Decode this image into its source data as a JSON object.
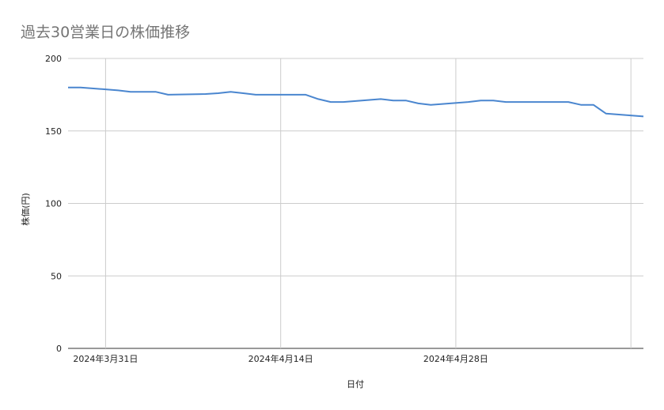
{
  "chart_data": {
    "type": "line",
    "title": "過去30営業日の株価推移",
    "xlabel": "日付",
    "ylabel": "株価(円)",
    "ylim": [
      0,
      200
    ],
    "yticks": [
      0,
      50,
      100,
      150,
      200
    ],
    "xlim": [
      "2024-03-28",
      "2024-05-13"
    ],
    "xticks": [
      {
        "date": "2024-03-31",
        "label": "2024年3月31日"
      },
      {
        "date": "2024-04-14",
        "label": "2024年4月14日"
      },
      {
        "date": "2024-04-28",
        "label": "2024年4月28日"
      },
      {
        "date": "2024-05-12",
        "label": ""
      }
    ],
    "grid": true,
    "legend": "none",
    "series": [
      {
        "color": "#4a86cf",
        "points": [
          {
            "x": "2024-03-28",
            "y": 180
          },
          {
            "x": "2024-03-29",
            "y": 180
          },
          {
            "x": "2024-04-01",
            "y": 178
          },
          {
            "x": "2024-04-02",
            "y": 177
          },
          {
            "x": "2024-04-03",
            "y": 177
          },
          {
            "x": "2024-04-04",
            "y": 177
          },
          {
            "x": "2024-04-05",
            "y": 175
          },
          {
            "x": "2024-04-08",
            "y": 175.5
          },
          {
            "x": "2024-04-09",
            "y": 176
          },
          {
            "x": "2024-04-10",
            "y": 177
          },
          {
            "x": "2024-04-11",
            "y": 176
          },
          {
            "x": "2024-04-12",
            "y": 175
          },
          {
            "x": "2024-04-15",
            "y": 175
          },
          {
            "x": "2024-04-16",
            "y": 175
          },
          {
            "x": "2024-04-17",
            "y": 172
          },
          {
            "x": "2024-04-18",
            "y": 170
          },
          {
            "x": "2024-04-19",
            "y": 170
          },
          {
            "x": "2024-04-22",
            "y": 172
          },
          {
            "x": "2024-04-23",
            "y": 171
          },
          {
            "x": "2024-04-24",
            "y": 171
          },
          {
            "x": "2024-04-25",
            "y": 169
          },
          {
            "x": "2024-04-26",
            "y": 168
          },
          {
            "x": "2024-04-29",
            "y": 170
          },
          {
            "x": "2024-04-30",
            "y": 171
          },
          {
            "x": "2024-05-01",
            "y": 171
          },
          {
            "x": "2024-05-02",
            "y": 170
          },
          {
            "x": "2024-05-07",
            "y": 170
          },
          {
            "x": "2024-05-08",
            "y": 168
          },
          {
            "x": "2024-05-09",
            "y": 168
          },
          {
            "x": "2024-05-10",
            "y": 162
          },
          {
            "x": "2024-05-13",
            "y": 160
          }
        ]
      }
    ]
  }
}
